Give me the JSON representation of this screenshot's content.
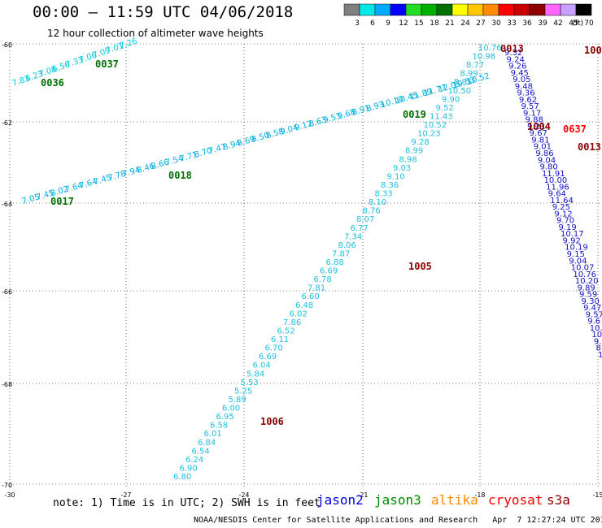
{
  "header": {
    "title": "00:00 — 11:59 UTC 04/06/2018",
    "subtitle": "12 hour collection of altimeter wave heights"
  },
  "colorbar": {
    "labels": [
      "3",
      "6",
      "9",
      "12",
      "15",
      "18",
      "21",
      "24",
      "27",
      "30",
      "33",
      "36",
      "39",
      "42",
      "45",
      "70"
    ],
    "unit": "(ft)",
    "colors": [
      "#808080",
      "#00e8e8",
      "#00aaff",
      "#0000ff",
      "#22dd22",
      "#00b000",
      "#007000",
      "#ffff00",
      "#ffc800",
      "#ff8c00",
      "#ff0000",
      "#c80000",
      "#8b0000",
      "#ff66ff",
      "#c8a0ff",
      "#000000"
    ]
  },
  "map": {
    "lat_ticks": [
      "-60",
      "-62",
      "-64",
      "-66",
      "-68",
      "-70"
    ],
    "lon_ticks": [
      "-30",
      "-27",
      "-24",
      "-21",
      "-18",
      "-15"
    ],
    "tracks": [
      {
        "id": "0036",
        "satellite": "jason3",
        "color": "#007000"
      },
      {
        "id": "0037",
        "satellite": "jason3",
        "color": "#007000"
      },
      {
        "id": "0017",
        "satellite": "jason3",
        "color": "#007000"
      },
      {
        "id": "0018",
        "satellite": "jason3",
        "color": "#007000"
      },
      {
        "id": "0019",
        "satellite": "jason3",
        "color": "#007000"
      },
      {
        "id": "1005",
        "satellite": "cryosat",
        "color": "#8b0000"
      },
      {
        "id": "1006",
        "satellite": "cryosat",
        "color": "#8b0000"
      },
      {
        "id": "1004",
        "satellite": "cryosat",
        "color": "#8b0000"
      },
      {
        "id": "0013",
        "satellite": "s3a",
        "color": "#8b0000"
      },
      {
        "id": "0637",
        "satellite": "cryosat",
        "color": "#ff0000"
      },
      {
        "id": "0013",
        "satellite": "s3a",
        "color": "#8b0000"
      },
      {
        "id": "100",
        "satellite": "s3a",
        "color": "#8b0000"
      }
    ],
    "track_values": {
      "t0036_37": [
        "7.83",
        "6.23",
        "7.08",
        "6.56",
        "7.33",
        "7.06",
        "7.09",
        "7.01",
        "7.26"
      ],
      "t0017_19": [
        "7.05",
        "7.45",
        "8.02",
        "7.64",
        "7.64",
        "7.45",
        "7.78",
        "7.94",
        "8.46",
        "8.66",
        "7.54",
        "7.71",
        "8.70",
        "7.47",
        "8.94",
        "8.69",
        "8.50",
        "8.58",
        "9.04",
        "9.12",
        "8.63",
        "9.53",
        "9.68",
        "8.91",
        "8.93",
        "10.10",
        "10.45",
        "11.89",
        "11.77",
        "12.05",
        "10.53",
        "10.52"
      ],
      "t1005_1006": [
        "6.80",
        "6.90",
        "6.24",
        "6.54",
        "6.84",
        "6.01",
        "6.58",
        "6.95",
        "6.00",
        "5.89",
        "5.25",
        "5.53",
        "5.84",
        "6.04",
        "6.69",
        "6.70",
        "6.11",
        "6.52",
        "7.86",
        "6.02",
        "6.48",
        "6.60",
        "7.81",
        "6.78",
        "6.69",
        "6.88",
        "7.87",
        "8.06",
        "7.34",
        "6.77",
        "8.07",
        "8.76",
        "8.10",
        "8.33",
        "8.36",
        "9.10",
        "9.03",
        "8.98",
        "8.99",
        "9.28",
        "10.23",
        "10.52",
        "11.43",
        "9.52",
        "9.90",
        "10.50",
        "8.85",
        "8.99",
        "8.77",
        "10.98",
        "10.76"
      ],
      "t_east": [
        "9.32",
        "9.24",
        "9.26",
        "9.45",
        "9.05",
        "9.48",
        "9.36",
        "9.62",
        "9.57",
        "9.17",
        "9.88",
        "9.21",
        "9.67",
        "9.81",
        "9.01",
        "9.86",
        "9.04",
        "9.80",
        "11.91",
        "10.00",
        "11.96",
        "9.64",
        "11.64",
        "9.25",
        "9.12",
        "9.70",
        "9.19",
        "10.17",
        "9.92",
        "10.19",
        "9.15",
        "9.04",
        "10.07",
        "10.76",
        "10.20",
        "9.89",
        "9.59",
        "9.30",
        "9.47",
        "9.57",
        "9.6",
        "10.0",
        "10",
        "9.1",
        "8.94",
        "11.1"
      ]
    }
  },
  "footer": {
    "note": "note: 1) Time is in UTC; 2) SWH is in feet",
    "legend": [
      {
        "label": "jason2",
        "color": "#0000dd"
      },
      {
        "label": "jason3",
        "color": "#008800"
      },
      {
        "label": "altika",
        "color": "#ff8c00"
      },
      {
        "label": "cryosat",
        "color": "#ee0000"
      },
      {
        "label": "s3a",
        "color": "#8b0000"
      }
    ],
    "credit": "NOAA/NESDIS Center for Satellite Applications and Research   Apr  7 12:27:24 UTC 2018"
  }
}
